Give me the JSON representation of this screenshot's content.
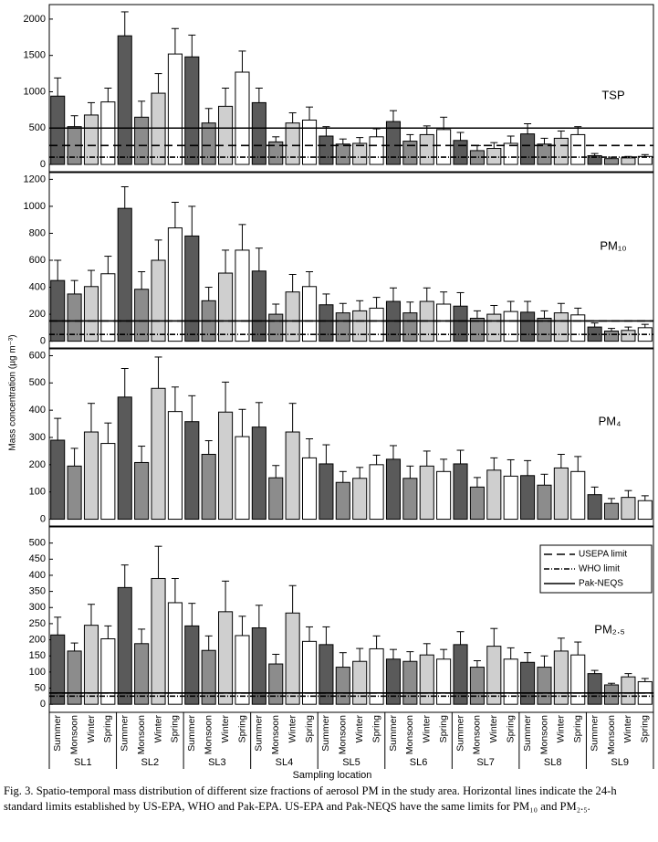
{
  "ylabel": "Mass concentration (µg m⁻³)",
  "xlabel": "Sampling location",
  "caption": "Fig. 3. Spatio-temporal mass distribution of different size fractions of aerosol PM in the study area. Horizontal lines indicate the 24-h standard limits established by US-EPA, WHO and Pak-EPA. US-EPA and Pak-NEQS have the same limits for PM₁₀ and PM₂.₅.",
  "categories": [
    "SL1",
    "SL2",
    "SL3",
    "SL4",
    "SL5",
    "SL6",
    "SL7",
    "SL8",
    "SL9"
  ],
  "seasons": [
    {
      "name": "Summer",
      "color": "#5a5a5a"
    },
    {
      "name": "Monsoon",
      "color": "#8c8c8c"
    },
    {
      "name": "Winter",
      "color": "#cfcfcf"
    },
    {
      "name": "Spring",
      "color": "#ffffff"
    }
  ],
  "limit_lines": [
    {
      "name": "USEPA limit",
      "dash": "9,5"
    },
    {
      "name": "WHO limit",
      "dash": "6,2,1,2"
    },
    {
      "name": "Pak-NEQS",
      "dash": "none"
    }
  ],
  "chart_data": [
    {
      "type": "bar",
      "title": "TSP",
      "ylim": [
        -100,
        2200
      ],
      "yticks": [
        0,
        500,
        1000,
        1500,
        2000
      ],
      "limits": [
        260,
        100,
        500
      ],
      "series": [
        {
          "values": [
            940,
            1770,
            1480,
            850,
            390,
            590,
            330,
            420,
            120
          ],
          "errors": [
            250,
            330,
            300,
            200,
            130,
            150,
            110,
            140,
            30
          ]
        },
        {
          "values": [
            520,
            650,
            570,
            310,
            280,
            320,
            190,
            280,
            80
          ],
          "errors": [
            150,
            220,
            200,
            70,
            70,
            90,
            70,
            80,
            20
          ]
        },
        {
          "values": [
            680,
            980,
            800,
            570,
            290,
            410,
            220,
            360,
            90
          ],
          "errors": [
            170,
            270,
            250,
            140,
            80,
            120,
            80,
            100,
            20
          ]
        },
        {
          "values": [
            860,
            1520,
            1270,
            610,
            380,
            480,
            290,
            410,
            110
          ],
          "errors": [
            190,
            350,
            290,
            180,
            110,
            170,
            100,
            110,
            25
          ]
        }
      ]
    },
    {
      "type": "bar",
      "title": "PM₁₀",
      "ylim": [
        -50,
        1250
      ],
      "yticks": [
        0,
        200,
        400,
        600,
        800,
        1000,
        1200
      ],
      "limits": [
        150,
        50,
        150
      ],
      "series": [
        {
          "values": [
            450,
            985,
            780,
            520,
            270,
            295,
            260,
            215,
            105
          ],
          "errors": [
            150,
            160,
            220,
            170,
            80,
            100,
            100,
            80,
            30
          ]
        },
        {
          "values": [
            350,
            385,
            300,
            200,
            210,
            210,
            170,
            170,
            75
          ],
          "errors": [
            100,
            130,
            100,
            75,
            70,
            80,
            55,
            55,
            20
          ]
        },
        {
          "values": [
            405,
            600,
            505,
            365,
            225,
            295,
            200,
            210,
            80
          ],
          "errors": [
            120,
            150,
            170,
            130,
            75,
            100,
            65,
            70,
            25
          ]
        },
        {
          "values": [
            500,
            840,
            675,
            405,
            245,
            275,
            220,
            195,
            100
          ],
          "errors": [
            130,
            190,
            190,
            110,
            80,
            90,
            75,
            50,
            25
          ]
        }
      ]
    },
    {
      "type": "bar",
      "title": "PM₄",
      "ylim": [
        -25,
        625
      ],
      "yticks": [
        0,
        100,
        200,
        300,
        400,
        500,
        600
      ],
      "series": [
        {
          "values": [
            290,
            448,
            358,
            338,
            203,
            220,
            203,
            160,
            90
          ],
          "errors": [
            80,
            105,
            95,
            90,
            70,
            50,
            50,
            55,
            28
          ]
        },
        {
          "values": [
            195,
            208,
            238,
            152,
            135,
            150,
            118,
            125,
            58
          ],
          "errors": [
            65,
            60,
            50,
            45,
            40,
            45,
            35,
            40,
            18
          ]
        },
        {
          "values": [
            320,
            480,
            393,
            320,
            150,
            195,
            180,
            188,
            80
          ],
          "errors": [
            105,
            115,
            110,
            105,
            40,
            55,
            45,
            50,
            25
          ]
        },
        {
          "values": [
            278,
            395,
            303,
            225,
            200,
            175,
            158,
            175,
            68
          ],
          "errors": [
            75,
            90,
            100,
            70,
            35,
            45,
            60,
            55,
            18
          ]
        }
      ]
    },
    {
      "type": "bar",
      "title": "PM₂.₅",
      "ylim": [
        -25,
        550
      ],
      "yticks": [
        0,
        50,
        100,
        150,
        200,
        250,
        300,
        350,
        400,
        450,
        500
      ],
      "limits": [
        35,
        25,
        35
      ],
      "legend": "upper right",
      "series": [
        {
          "values": [
            215,
            362,
            243,
            237,
            185,
            140,
            185,
            130,
            95
          ],
          "errors": [
            55,
            70,
            70,
            70,
            55,
            30,
            40,
            30,
            10
          ]
        },
        {
          "values": [
            165,
            188,
            167,
            125,
            115,
            133,
            115,
            115,
            60
          ],
          "errors": [
            25,
            45,
            45,
            30,
            45,
            30,
            20,
            35,
            5
          ]
        },
        {
          "values": [
            245,
            390,
            287,
            283,
            133,
            153,
            180,
            165,
            85
          ],
          "errors": [
            65,
            100,
            95,
            85,
            40,
            35,
            55,
            40,
            10
          ]
        },
        {
          "values": [
            203,
            315,
            213,
            195,
            172,
            140,
            140,
            153,
            70
          ],
          "errors": [
            40,
            75,
            60,
            45,
            40,
            30,
            35,
            40,
            10
          ]
        }
      ]
    }
  ]
}
